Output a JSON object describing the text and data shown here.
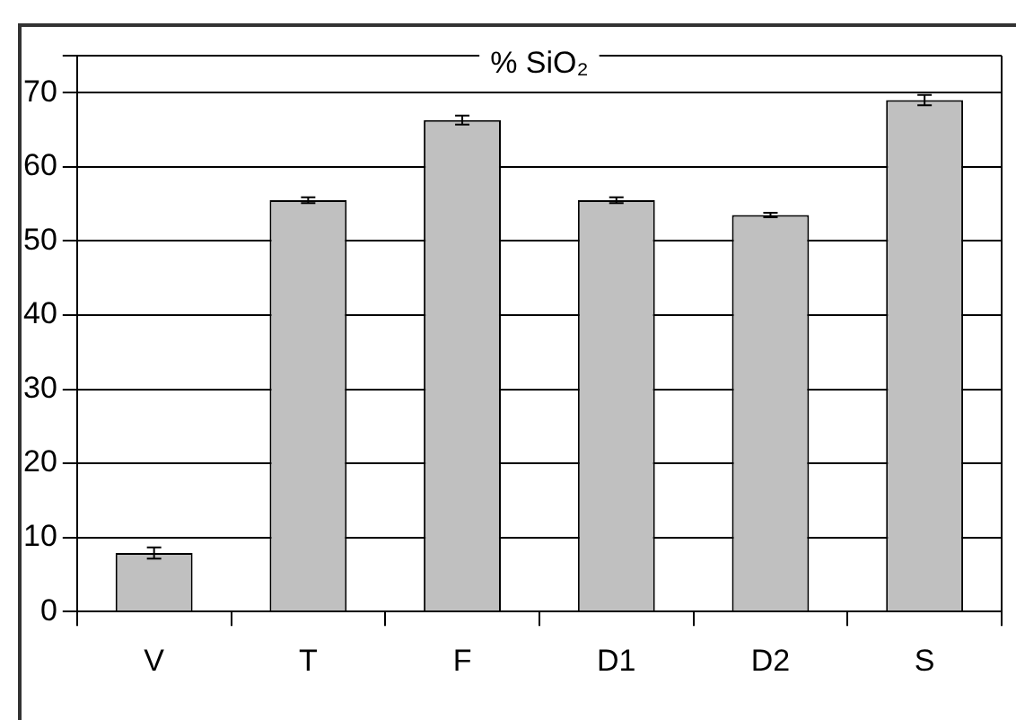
{
  "chart_data": {
    "type": "bar",
    "title": "% SiO₂",
    "categories": [
      "V",
      "T",
      "F",
      "D1",
      "D2",
      "S"
    ],
    "values": [
      7.9,
      55.5,
      66.3,
      55.5,
      53.5,
      69.0
    ],
    "errors": [
      0.75,
      0.4,
      0.6,
      0.4,
      0.3,
      0.7
    ],
    "color": "#c0c0c0",
    "ylim": [
      0,
      75
    ],
    "yticks": [
      0,
      10,
      20,
      30,
      40,
      50,
      60,
      70,
      {
        "value": 75,
        "label": null
      }
    ],
    "grid": "y",
    "legend": false
  }
}
